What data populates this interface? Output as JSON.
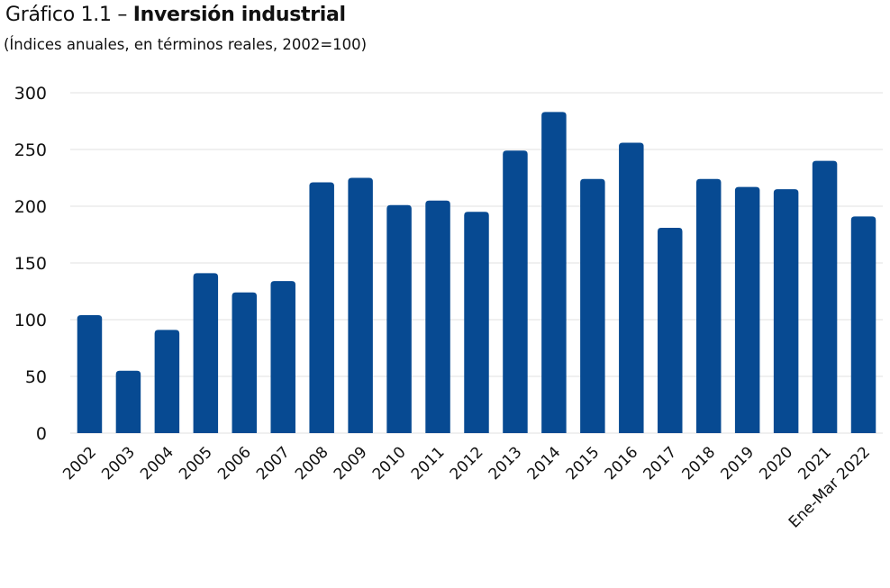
{
  "chart_data": {
    "type": "bar",
    "title_prefix": "Gráfico 1.1 – ",
    "title_main": "Inversión industrial",
    "subtitle": "(Índices anuales, en términos reales, 2002=100)",
    "xlabel": "",
    "ylabel": "",
    "ylim": [
      0,
      300
    ],
    "yticks": [
      0,
      50,
      100,
      150,
      200,
      250,
      300
    ],
    "grid": true,
    "legend": "none",
    "bar_color": "#074a92",
    "grid_color": "#ebebeb",
    "categories": [
      "2002",
      "2003",
      "2004",
      "2005",
      "2006",
      "2007",
      "2008",
      "2009",
      "2010",
      "2011",
      "2012",
      "2013",
      "2014",
      "2015",
      "2016",
      "2017",
      "2018",
      "2019",
      "2020",
      "2021",
      "Ene-Mar 2022"
    ],
    "values": [
      104,
      55,
      91,
      141,
      124,
      134,
      221,
      225,
      201,
      205,
      195,
      249,
      283,
      224,
      256,
      181,
      224,
      217,
      215,
      240,
      191
    ]
  }
}
